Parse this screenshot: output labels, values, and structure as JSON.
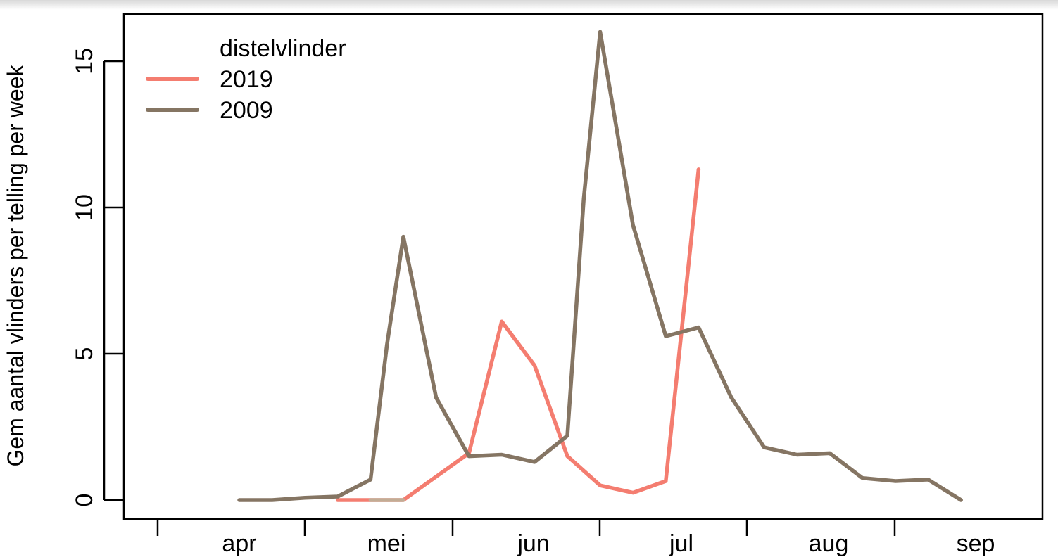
{
  "chart_data": {
    "type": "line",
    "title": "",
    "xlabel": "",
    "ylabel": "Gem aantal vlinders per telling per week",
    "x_ticks": [
      "apr",
      "mei",
      "jun",
      "jul",
      "aug",
      "sep"
    ],
    "y_ticks": [
      0,
      5,
      10,
      15
    ],
    "ylim": [
      -0.6,
      16.5
    ],
    "grid": false,
    "legend": {
      "title": "distelvlinder",
      "placement": "top-left"
    },
    "x_unit": "week index (weeks from early April)",
    "series": [
      {
        "name": "2019",
        "color": "#f47d70",
        "x": [
          5,
          6,
          7,
          8,
          9,
          10,
          11,
          12,
          13,
          14,
          15,
          16
        ],
        "values": [
          0.0,
          0.0,
          0.0,
          0.8,
          1.6,
          6.1,
          4.6,
          1.5,
          0.5,
          0.25,
          0.65,
          11.3
        ]
      },
      {
        "name": "2009",
        "color": "#857563",
        "x": [
          2,
          3,
          4,
          5,
          6,
          6.5,
          7,
          8,
          9,
          10,
          11,
          12,
          12.5,
          13,
          14,
          15,
          16,
          17,
          18,
          19,
          20,
          21,
          22,
          23,
          24
        ],
        "values": [
          0.0,
          0.0,
          0.08,
          0.12,
          0.7,
          5.3,
          9.0,
          3.5,
          1.5,
          1.55,
          1.3,
          2.2,
          10.3,
          16.0,
          9.4,
          5.6,
          5.9,
          3.5,
          1.8,
          1.55,
          1.6,
          0.75,
          0.65,
          0.7,
          0.0
        ]
      }
    ],
    "overlap_color": "#c2ac95"
  }
}
